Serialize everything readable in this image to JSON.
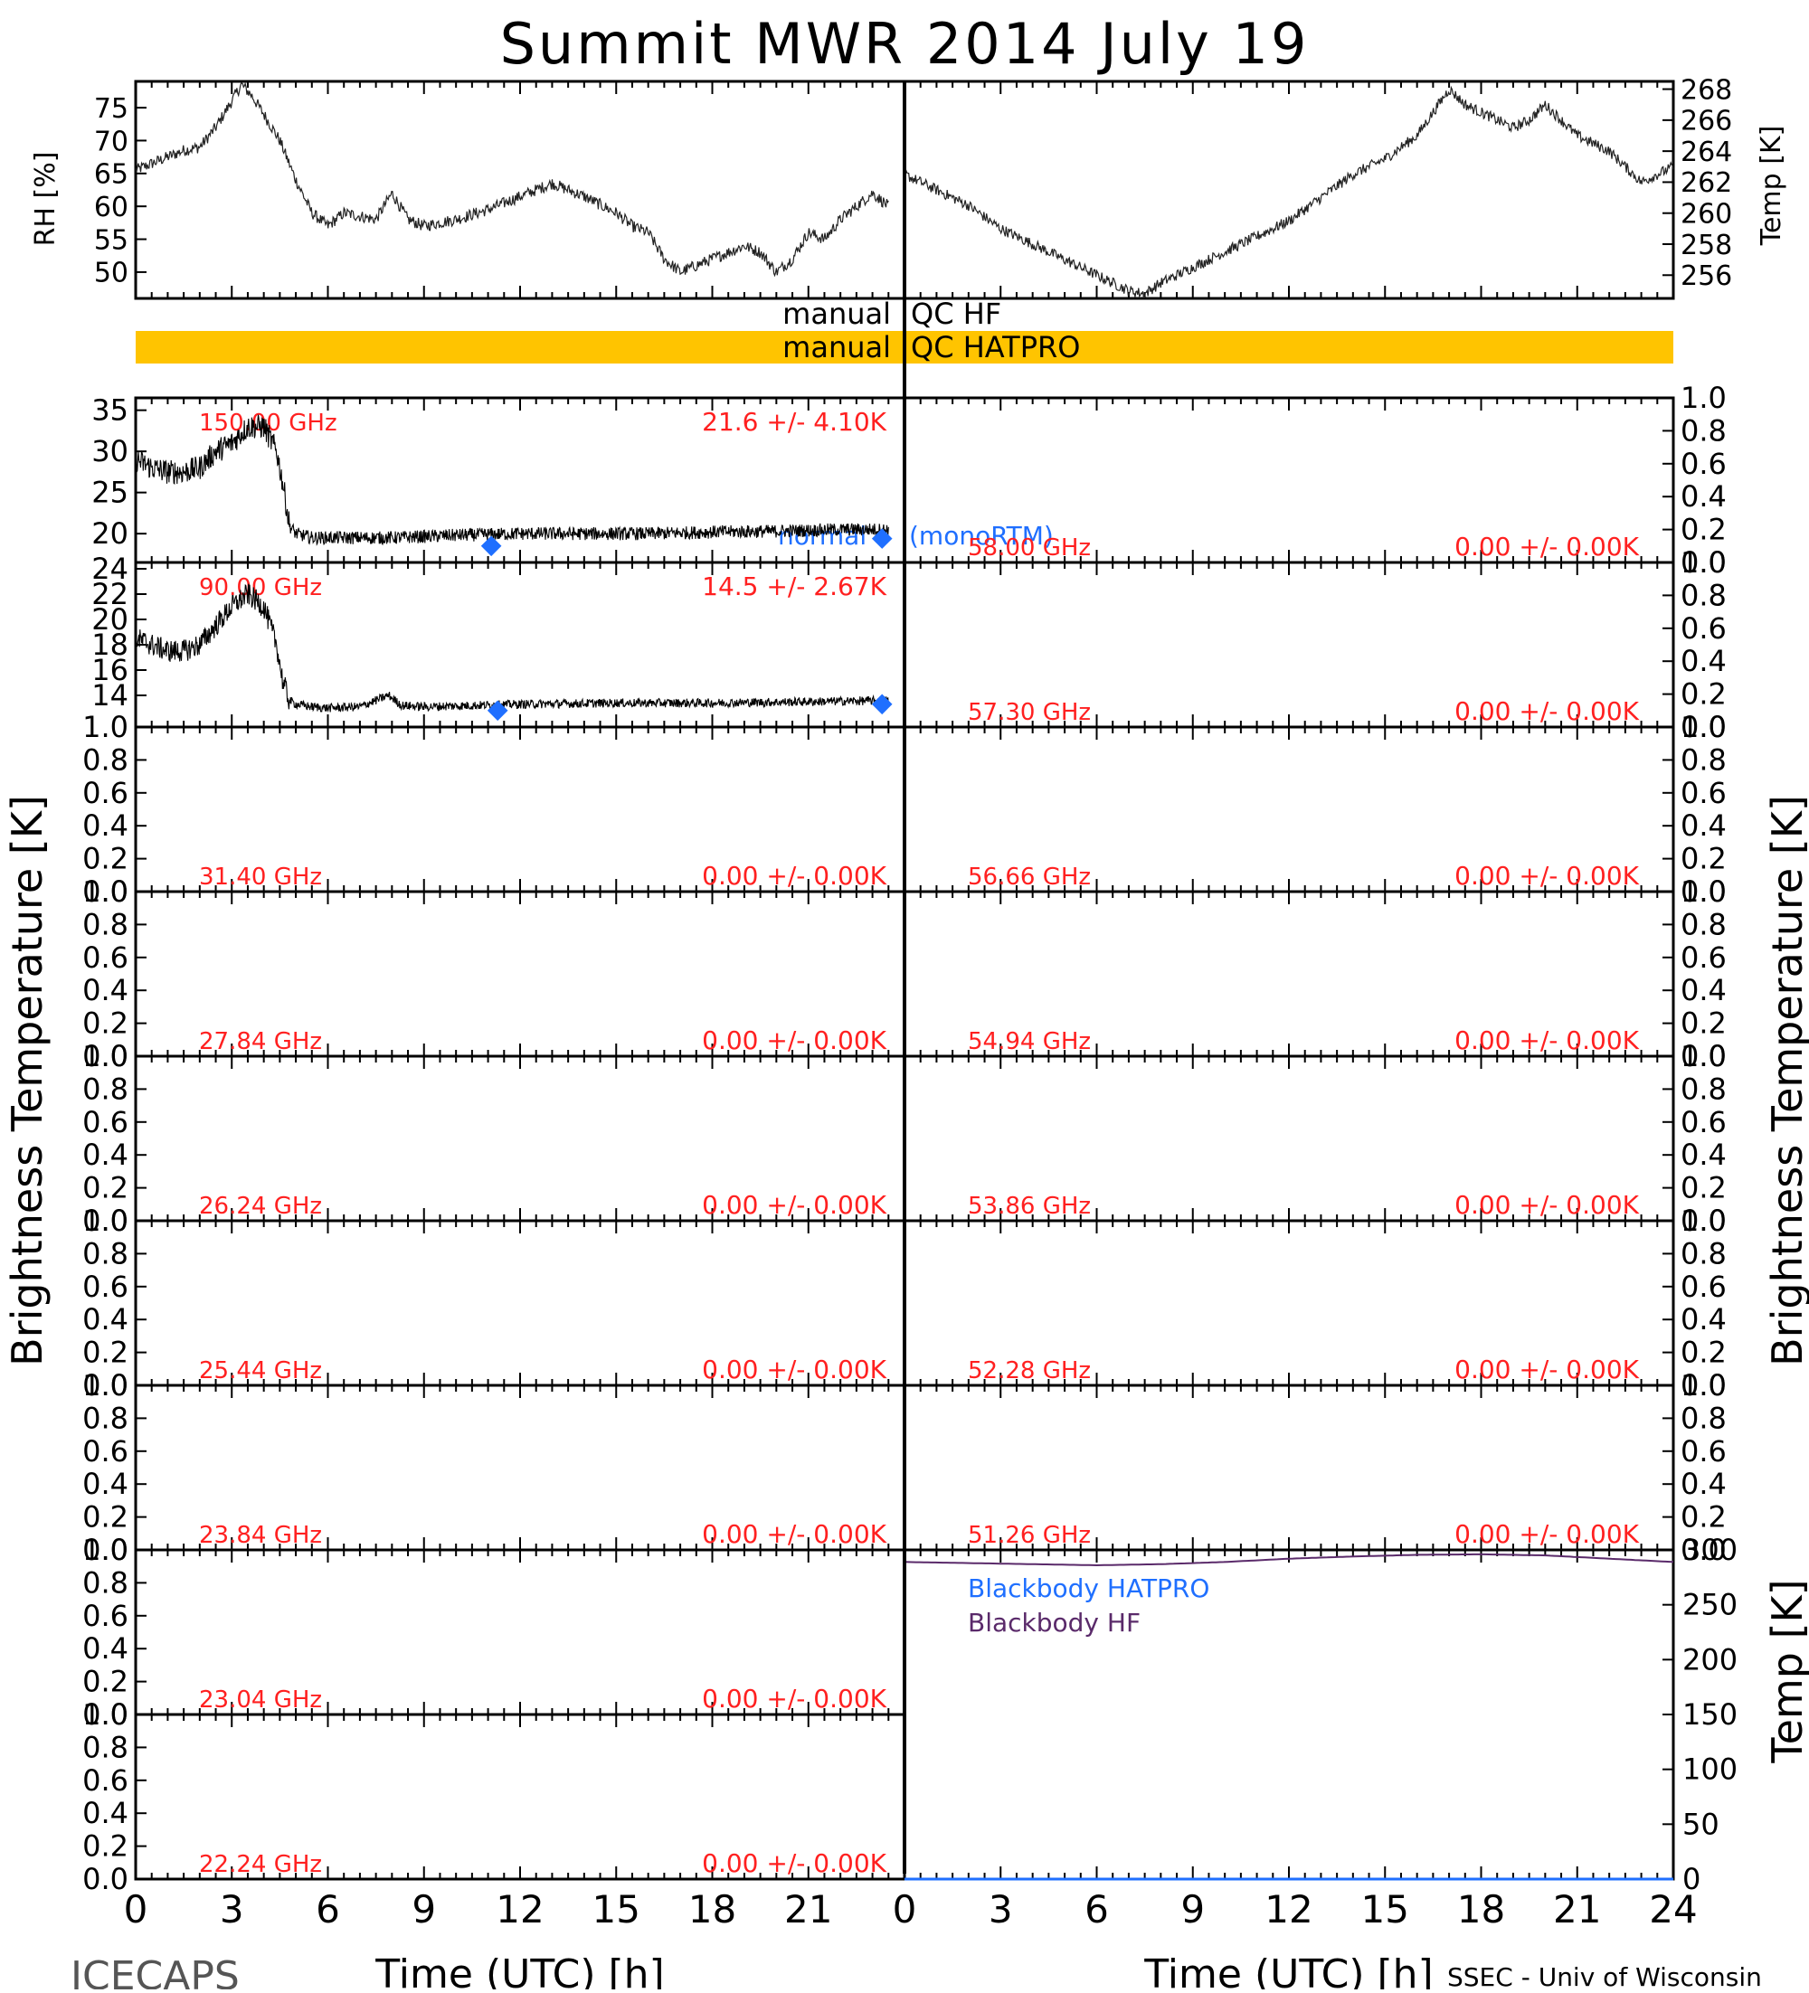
{
  "title": "Summit MWR 2014 July 19",
  "footer_left": "ICECAPS",
  "footer_right": "SSEC - Univ of Wisconsin",
  "colors": {
    "axis": "#000000",
    "label_red": "#ff2020",
    "blue": "#1f6fff",
    "orange": "#ffc400",
    "purple": "#5a2a6a"
  },
  "qc": {
    "hf_left": "manual",
    "hf_right": "QC HF",
    "hatpro_left": "manual",
    "hatpro_right": "QC HATPRO"
  },
  "legend": {
    "normal": "normal",
    "monortm": "(monoRTM)",
    "bb_hatpro": "Blackbody HATPRO",
    "bb_hf": "Blackbody HF"
  },
  "y_labels": {
    "rh": "RH [%]",
    "temp_top": "Temp [K]",
    "tb_left": "Brightness Temperature [K]",
    "tb_right": "Brightness Temperature [K]",
    "temp_bb": "Temp [K]"
  },
  "x_label": "Time (UTC) [h]",
  "chart_data": [
    {
      "type": "line",
      "title": "",
      "ylabel": "RH [%]",
      "xlabel": "Time (UTC) [h]",
      "xlim": [
        0,
        24
      ],
      "ylim": [
        46,
        79
      ],
      "yticks": [
        50,
        55,
        60,
        65,
        70,
        75
      ],
      "series": [
        {
          "name": "RH",
          "x": [
            0,
            0.5,
            1,
            1.5,
            2,
            2.5,
            3,
            3.3,
            3.6,
            4,
            4.5,
            5,
            5.5,
            6,
            6.5,
            7,
            7.5,
            8,
            8.5,
            9,
            10,
            11,
            12,
            13,
            14,
            15,
            15.5,
            16,
            16.5,
            17,
            17.5,
            18,
            18.5,
            19,
            19.5,
            20,
            20.5,
            21,
            21.5,
            22,
            22.5,
            23,
            23.5
          ],
          "values": [
            65.5,
            66.5,
            67.5,
            68.5,
            69,
            72,
            76,
            78.5,
            77,
            74,
            70,
            64,
            59,
            57,
            59,
            58.5,
            58,
            62,
            58,
            57,
            58,
            59.5,
            61.5,
            63.5,
            61.5,
            59,
            57,
            56,
            52,
            50,
            51,
            52,
            53,
            54,
            53,
            50,
            52,
            56,
            55,
            58,
            60,
            62,
            60
          ]
        }
      ]
    },
    {
      "type": "line",
      "title": "",
      "ylabel": "Temp [K]",
      "xlabel": "Time (UTC) [h]",
      "xlim": [
        0,
        24
      ],
      "ylim": [
        254.5,
        268.5
      ],
      "yticks": [
        256,
        258,
        260,
        262,
        264,
        266,
        268
      ],
      "series": [
        {
          "name": "Temp",
          "x": [
            0,
            0.5,
            1,
            1.5,
            2,
            3,
            4,
            5,
            6,
            7,
            7.5,
            8,
            9,
            10,
            11,
            12,
            13,
            14,
            15,
            16,
            16.5,
            17,
            17.5,
            18,
            18.5,
            19,
            19.5,
            20,
            21,
            22,
            23,
            23.5,
            24
          ],
          "values": [
            262.5,
            262,
            261.5,
            261,
            260.5,
            259,
            258,
            257,
            256,
            255,
            254.8,
            255.5,
            256.5,
            257.5,
            258.5,
            259.5,
            261,
            262.5,
            263.5,
            265,
            266.5,
            268,
            267,
            266.5,
            266,
            265.5,
            266,
            267,
            265,
            264,
            262,
            262.5,
            263
          ]
        }
      ]
    },
    {
      "type": "line",
      "title": "150.00 GHz",
      "stats": "21.6 +/-  4.10K",
      "xlim": [
        0,
        24
      ],
      "ylim": [
        16.5,
        36.5
      ],
      "yticks": [
        20,
        25,
        30,
        35
      ],
      "series": [
        {
          "name": "150.00 GHz",
          "x": [
            0,
            0.5,
            1,
            1.5,
            2,
            2.5,
            3,
            3.5,
            4,
            4.4,
            4.6,
            4.8,
            5,
            5.5,
            6,
            8,
            10,
            12,
            14,
            16,
            18,
            20,
            22,
            23.5
          ],
          "values": [
            29,
            28,
            27.5,
            27.5,
            28,
            30,
            31,
            33,
            33,
            30,
            26,
            21,
            20,
            19.5,
            19.5,
            19.5,
            19.8,
            20,
            20,
            20,
            20.2,
            20.3,
            20.5,
            20.5
          ]
        },
        {
          "name": "normal (monoRTM)",
          "x": [
            11.1,
            23.3
          ],
          "values": [
            18.5,
            19.4
          ]
        }
      ]
    },
    {
      "type": "line",
      "title": "90.00 GHz",
      "stats": "14.5 +/-  2.67K",
      "xlim": [
        0,
        24
      ],
      "ylim": [
        11.5,
        24.5
      ],
      "yticks": [
        14,
        16,
        18,
        20,
        22,
        24
      ],
      "series": [
        {
          "name": "90.00 GHz",
          "x": [
            0,
            0.5,
            1,
            1.5,
            2,
            2.5,
            3,
            3.5,
            4,
            4.4,
            4.6,
            4.8,
            5,
            5.5,
            6,
            7,
            7.9,
            8.3,
            9,
            12,
            15,
            18,
            21,
            23.5
          ],
          "values": [
            18.5,
            18,
            17.5,
            17.5,
            18,
            19.5,
            21,
            22,
            21,
            18,
            15,
            13.6,
            13.3,
            13.1,
            13,
            13.1,
            14,
            13.2,
            13.1,
            13.3,
            13.4,
            13.4,
            13.5,
            13.6
          ]
        },
        {
          "name": "normal (monoRTM)",
          "x": [
            11.3,
            23.3
          ],
          "values": [
            12.8,
            13.3
          ]
        }
      ]
    },
    {
      "type": "line",
      "title": "31.40 GHz",
      "stats": "0.00 +/-  0.00K",
      "xlim": [
        0,
        24
      ],
      "ylim": [
        0,
        1
      ],
      "series": []
    },
    {
      "type": "line",
      "title": "27.84 GHz",
      "stats": "0.00 +/-  0.00K",
      "xlim": [
        0,
        24
      ],
      "ylim": [
        0,
        1
      ],
      "series": []
    },
    {
      "type": "line",
      "title": "26.24 GHz",
      "stats": "0.00 +/-  0.00K",
      "xlim": [
        0,
        24
      ],
      "ylim": [
        0,
        1
      ],
      "series": []
    },
    {
      "type": "line",
      "title": "25.44 GHz",
      "stats": "0.00 +/-  0.00K",
      "xlim": [
        0,
        24
      ],
      "ylim": [
        0,
        1
      ],
      "series": []
    },
    {
      "type": "line",
      "title": "23.84 GHz",
      "stats": "0.00 +/-  0.00K",
      "xlim": [
        0,
        24
      ],
      "ylim": [
        0,
        1
      ],
      "series": []
    },
    {
      "type": "line",
      "title": "23.04 GHz",
      "stats": "0.00 +/-  0.00K",
      "xlim": [
        0,
        24
      ],
      "ylim": [
        0,
        1
      ],
      "series": []
    },
    {
      "type": "line",
      "title": "22.24 GHz",
      "stats": "0.00 +/-  0.00K",
      "xlim": [
        0,
        24
      ],
      "ylim": [
        0,
        1
      ],
      "series": []
    },
    {
      "type": "line",
      "title": "58.00 GHz",
      "stats": "0.00 +/-  0.00K",
      "xlim": [
        0,
        24
      ],
      "ylim": [
        0,
        1
      ],
      "series": []
    },
    {
      "type": "line",
      "title": "57.30 GHz",
      "stats": "0.00 +/-  0.00K",
      "xlim": [
        0,
        24
      ],
      "ylim": [
        0,
        1
      ],
      "series": []
    },
    {
      "type": "line",
      "title": "56.66 GHz",
      "stats": "0.00 +/-  0.00K",
      "xlim": [
        0,
        24
      ],
      "ylim": [
        0,
        1
      ],
      "series": []
    },
    {
      "type": "line",
      "title": "54.94 GHz",
      "stats": "0.00 +/-  0.00K",
      "xlim": [
        0,
        24
      ],
      "ylim": [
        0,
        1
      ],
      "series": []
    },
    {
      "type": "line",
      "title": "53.86 GHz",
      "stats": "0.00 +/-  0.00K",
      "xlim": [
        0,
        24
      ],
      "ylim": [
        0,
        1
      ],
      "series": []
    },
    {
      "type": "line",
      "title": "52.28 GHz",
      "stats": "0.00 +/-  0.00K",
      "xlim": [
        0,
        24
      ],
      "ylim": [
        0,
        1
      ],
      "series": []
    },
    {
      "type": "line",
      "title": "51.26 GHz",
      "stats": "0.00 +/-  0.00K",
      "xlim": [
        0,
        24
      ],
      "ylim": [
        0,
        1
      ],
      "series": []
    },
    {
      "type": "line",
      "title": "",
      "ylabel": "Temp [K]",
      "xlabel": "Time (UTC) [h]",
      "xlim": [
        0,
        24
      ],
      "ylim": [
        0,
        300
      ],
      "yticks": [
        0,
        50,
        100,
        150,
        200,
        250,
        300
      ],
      "series": [
        {
          "name": "Blackbody HATPRO",
          "x": [
            0,
            24
          ],
          "values": [
            0,
            0
          ]
        },
        {
          "name": "Blackbody HF",
          "x": [
            0,
            2,
            4,
            6,
            8,
            10,
            12,
            14,
            16,
            18,
            20,
            22,
            24
          ],
          "values": [
            289,
            288,
            287,
            286,
            287,
            289,
            292,
            294,
            295.5,
            296,
            295,
            292,
            289
          ]
        }
      ]
    }
  ]
}
